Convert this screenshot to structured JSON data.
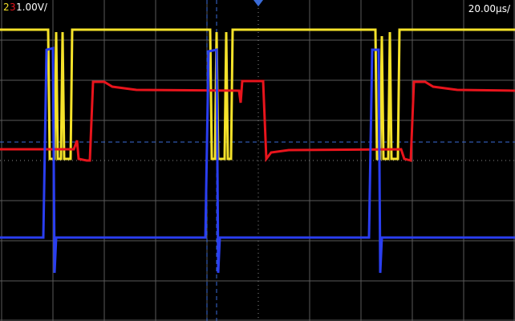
{
  "channel_labels": {
    "ch2": "2",
    "ch3": "3",
    "scale": "1.00V/"
  },
  "timebase": "20.00µs/"
}
